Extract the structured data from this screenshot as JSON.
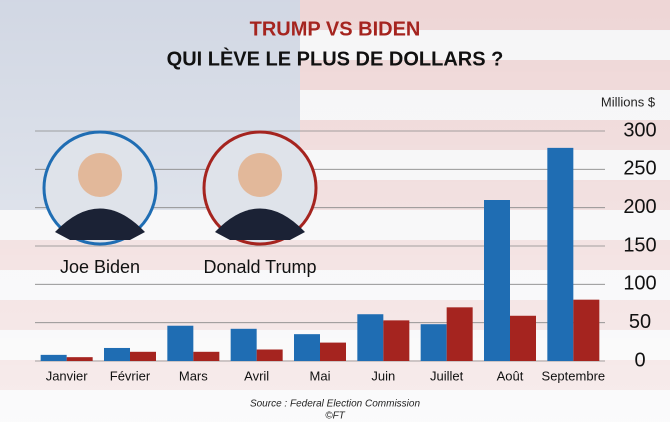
{
  "chart_data": {
    "type": "bar",
    "title": "TRUMP VS BIDEN",
    "subtitle": "QUI LÈVE LE PLUS DE DOLLARS ?",
    "y_axis_label": "Millions  $",
    "categories": [
      "Janvier",
      "Février",
      "Mars",
      "Avril",
      "Mai",
      "Juin",
      "Juillet",
      "Août",
      "Septembre"
    ],
    "series": [
      {
        "name": "Joe Biden",
        "color": "#1f6db3",
        "values": [
          8,
          17,
          46,
          42,
          35,
          61,
          48,
          210,
          278
        ]
      },
      {
        "name": "Donald Trump",
        "color": "#a5241f",
        "values": [
          5,
          12,
          12,
          15,
          24,
          53,
          70,
          59,
          80
        ]
      }
    ],
    "ylim": [
      0,
      300
    ],
    "yticks": [
      0,
      50,
      100,
      150,
      200,
      250,
      300
    ],
    "grid": true,
    "source": "Source : Federal Election Commission",
    "credit": "©FT"
  }
}
